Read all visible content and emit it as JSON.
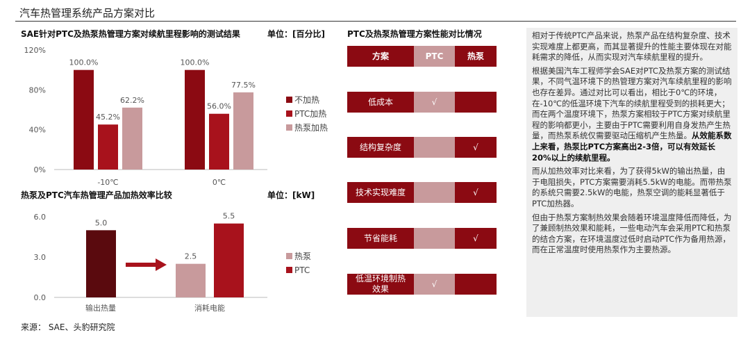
{
  "page": {
    "title": "汽车热管理系统产品方案对比",
    "source": "来源：  SAE、头豹研究院"
  },
  "colors": {
    "dark_red": "#8b0a12",
    "red": "#a8121c",
    "pink": "#c89a9c",
    "darkest": "#5a0a0e"
  },
  "chart_data": [
    {
      "type": "bar",
      "title": "SAE针对PTC及热泵热管理方案对续航里程影响的测试结果",
      "unit": "单位：[百分比]",
      "categories": [
        "-10℃",
        "0℃"
      ],
      "series": [
        {
          "name": "不加热",
          "values": [
            100.0,
            100.0
          ],
          "labels": [
            "100.0%",
            "100.0%"
          ]
        },
        {
          "name": "PTC加热",
          "values": [
            45.2,
            56.0
          ],
          "labels": [
            "45.2%",
            "56.0%"
          ]
        },
        {
          "name": "热泵加热",
          "values": [
            62.2,
            77.5
          ],
          "labels": [
            "62.2%",
            "77.5%"
          ]
        }
      ],
      "ylim": [
        0,
        120
      ],
      "yticks": [
        0,
        40,
        80,
        120
      ],
      "ytick_labels": [
        "0%",
        "40%",
        "80%",
        "120%"
      ],
      "legend": "right"
    },
    {
      "type": "bar",
      "title": "热泵及PTC汽车热管理产品加热效率比较",
      "unit": "单位：[kW]",
      "categories": [
        "输出热量",
        "消耗电能"
      ],
      "bars": [
        {
          "category": "输出热量",
          "value": 5.0,
          "label": "5.0",
          "color": "#5a0a0e"
        },
        {
          "category": "消耗电能",
          "value": 2.5,
          "label": "2.5",
          "color": "#c89a9c"
        },
        {
          "category": "消耗电能",
          "value": 5.5,
          "label": "5.5",
          "color": "#a8121c"
        }
      ],
      "legend_entries": [
        {
          "name": "热泵",
          "color": "#c89a9c"
        },
        {
          "name": "PTC",
          "color": "#a8121c"
        }
      ],
      "ylim": [
        0,
        6
      ],
      "yticks": [
        0,
        3,
        6
      ],
      "ytick_labels": [
        "0.0",
        "3.0",
        "6.0"
      ],
      "legend": "right"
    },
    {
      "type": "table",
      "title": "PTC及热泵热管理方案性能对比情况",
      "header": [
        "方案",
        "PTC",
        "热泵"
      ],
      "rows": [
        {
          "label": "低成本",
          "ptc": "√",
          "hp": ""
        },
        {
          "label": "结构复杂度",
          "ptc": "",
          "hp": "√"
        },
        {
          "label": "技术实现难度",
          "ptc": "",
          "hp": "√"
        },
        {
          "label": "节省能耗",
          "ptc": "",
          "hp": "√"
        },
        {
          "label": "低温环境制热效果",
          "ptc": "√",
          "hp": ""
        }
      ]
    }
  ],
  "text_panel": {
    "p1": "相对于传统PTC产品来说，热泵产品在结构复杂度、技术实现难度上都更高，而其显著提升的性能主要体现在对能耗需求的降低，从而实现对汽车续航里程的提升。",
    "p2_normal": "根据美国汽车工程师学会SAE对PTC及热泵方案的测试结果，不同气温环境下的热管理方案对汽车续航里程的影响也存在差异。通过对比可以看出，相比于0℃的环境，在-10℃的低温环境下汽车的续航里程受到的损耗更大；而在两个温度环境下，热泵方案相较于PTC方案对续航里程的影响都更小，主要由于PTC需要利用自身发热产生热量，而热泵系统仅需要驱动压缩机产生热量。",
    "p2_bold": "从效能系数上来看，热泵比PTC方案高出2-3倍，可以有效延长20%以上的续航里程。",
    "p3": "而从加热效率对比来看，为了获得5kW的输出热量，由于电阻损失，PTC方案需要消耗5.5kW的电能。而带热泵的系统只需要2.5kW的电能，热泵空调的能耗显著低于PTC加热器。",
    "p4": "但由于热泵方案制热效果会随着环境温度降低而降低，为了兼顾制热效果和能耗，一些电动汽车会采用PTC和热泵的结合方案，在环境温度过低时启动PTC作为备用热源，而在正常温度时使用热泵作为主要热源。"
  }
}
